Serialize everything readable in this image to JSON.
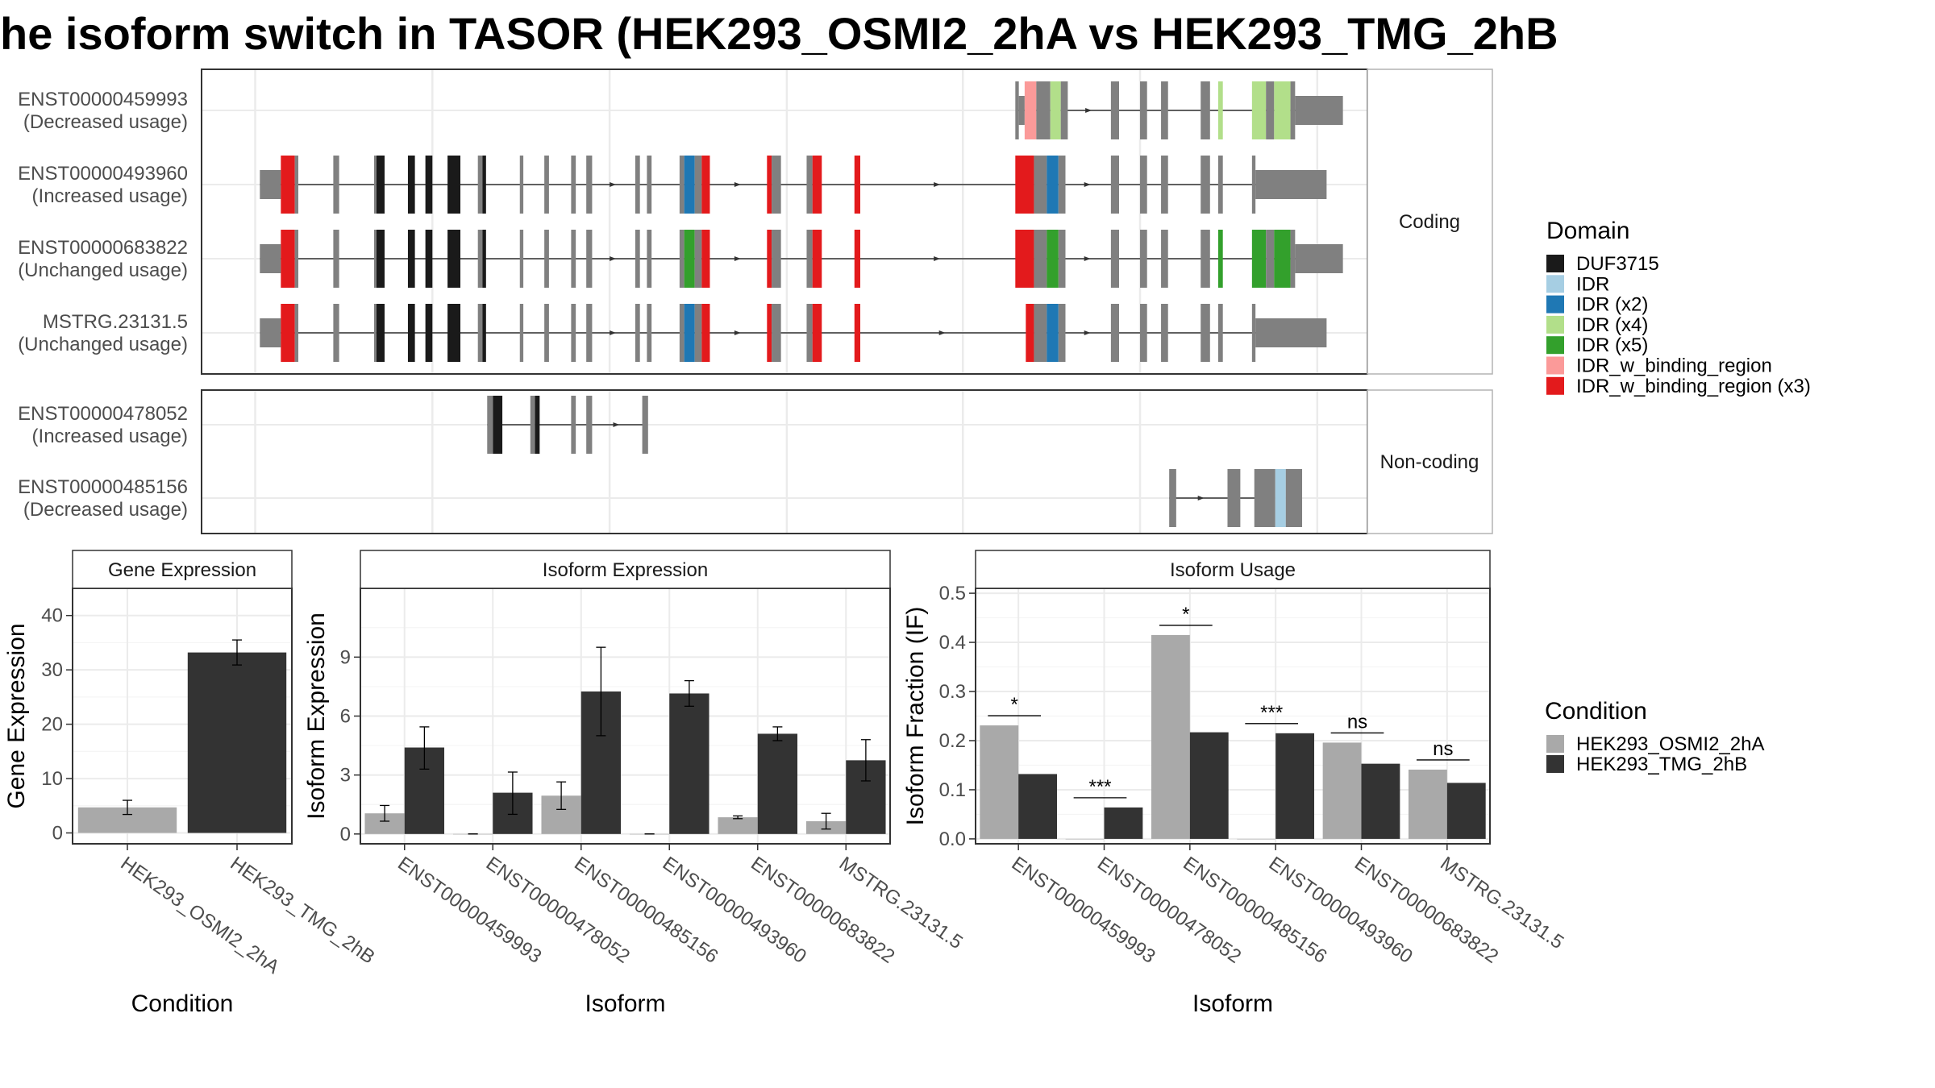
{
  "title": "he isoform switch in TASOR (HEK293_OSMI2_2hA vs HEK293_TMG_2hB",
  "colors": {
    "panel_border": "#333333",
    "grid": "#ebebeb",
    "intron": "#333333",
    "exon": "#808080",
    "cond_a": "#a9a9a9",
    "cond_b": "#333333"
  },
  "structure": {
    "strip_coding": "Coding",
    "strip_noncoding": "Non-coding",
    "coding": [
      {
        "id": "ENST00000459993",
        "usage": "(Decreased usage)",
        "intron": [
          0.7,
          0.965
        ],
        "exons": [
          [
            0.698,
            0.701,
            "c"
          ],
          [
            0.701,
            0.706,
            "u"
          ],
          [
            0.706,
            0.716,
            "IDR_w_binding_region"
          ],
          [
            0.716,
            0.728,
            "c"
          ],
          [
            0.728,
            0.737,
            "IDR (x4)"
          ],
          [
            0.737,
            0.743,
            "c"
          ],
          [
            0.78,
            0.787,
            "c"
          ],
          [
            0.805,
            0.811,
            "c"
          ],
          [
            0.823,
            0.829,
            "c"
          ],
          [
            0.857,
            0.865,
            "c"
          ],
          [
            0.872,
            0.876,
            "IDR (x4)"
          ],
          [
            0.901,
            0.913,
            "IDR (x4)"
          ],
          [
            0.913,
            0.92,
            "c"
          ],
          [
            0.92,
            0.934,
            "IDR (x4)"
          ],
          [
            0.934,
            0.938,
            "c"
          ],
          [
            0.938,
            0.979,
            "u"
          ]
        ]
      },
      {
        "id": "ENST00000493960",
        "usage": "(Increased usage)",
        "intron": [
          0.05,
          0.945
        ],
        "exons": [
          [
            0.05,
            0.068,
            "u"
          ],
          [
            0.068,
            0.08,
            "IDR_w_binding_region (x3)"
          ],
          [
            0.08,
            0.083,
            "c"
          ],
          [
            0.113,
            0.118,
            "c"
          ],
          [
            0.148,
            0.15,
            "c"
          ],
          [
            0.15,
            0.157,
            "DUF3715"
          ],
          [
            0.177,
            0.183,
            "DUF3715"
          ],
          [
            0.192,
            0.198,
            "DUF3715"
          ],
          [
            0.211,
            0.222,
            "DUF3715"
          ],
          [
            0.237,
            0.241,
            "c"
          ],
          [
            0.241,
            0.244,
            "DUF3715"
          ],
          [
            0.273,
            0.276,
            "c"
          ],
          [
            0.294,
            0.298,
            "c"
          ],
          [
            0.317,
            0.321,
            "c"
          ],
          [
            0.33,
            0.335,
            "c"
          ],
          [
            0.372,
            0.376,
            "c"
          ],
          [
            0.382,
            0.386,
            "c"
          ],
          [
            0.41,
            0.414,
            "c"
          ],
          [
            0.414,
            0.423,
            "IDR (x2)"
          ],
          [
            0.423,
            0.429,
            "c"
          ],
          [
            0.429,
            0.436,
            "IDR_w_binding_region (x3)"
          ],
          [
            0.485,
            0.489,
            "IDR_w_binding_region (x3)"
          ],
          [
            0.489,
            0.497,
            "c"
          ],
          [
            0.519,
            0.524,
            "c"
          ],
          [
            0.524,
            0.532,
            "IDR_w_binding_region (x3)"
          ],
          [
            0.56,
            0.565,
            "IDR_w_binding_region (x3)"
          ],
          [
            0.698,
            0.714,
            "IDR_w_binding_region (x3)"
          ],
          [
            0.714,
            0.725,
            "c"
          ],
          [
            0.725,
            0.735,
            "IDR (x2)"
          ],
          [
            0.735,
            0.741,
            "c"
          ],
          [
            0.78,
            0.787,
            "c"
          ],
          [
            0.805,
            0.811,
            "c"
          ],
          [
            0.823,
            0.829,
            "c"
          ],
          [
            0.857,
            0.865,
            "c"
          ],
          [
            0.872,
            0.876,
            "c"
          ],
          [
            0.901,
            0.904,
            "c"
          ],
          [
            0.904,
            0.965,
            "u"
          ]
        ]
      },
      {
        "id": "ENST00000683822",
        "usage": "(Unchanged usage)",
        "intron": [
          0.05,
          0.965
        ],
        "exons": [
          [
            0.05,
            0.068,
            "u"
          ],
          [
            0.068,
            0.08,
            "IDR_w_binding_region (x3)"
          ],
          [
            0.08,
            0.083,
            "c"
          ],
          [
            0.113,
            0.118,
            "c"
          ],
          [
            0.148,
            0.15,
            "c"
          ],
          [
            0.15,
            0.157,
            "DUF3715"
          ],
          [
            0.177,
            0.183,
            "DUF3715"
          ],
          [
            0.192,
            0.198,
            "DUF3715"
          ],
          [
            0.211,
            0.222,
            "DUF3715"
          ],
          [
            0.237,
            0.241,
            "c"
          ],
          [
            0.241,
            0.244,
            "DUF3715"
          ],
          [
            0.273,
            0.276,
            "c"
          ],
          [
            0.294,
            0.298,
            "c"
          ],
          [
            0.317,
            0.321,
            "c"
          ],
          [
            0.33,
            0.335,
            "c"
          ],
          [
            0.372,
            0.376,
            "c"
          ],
          [
            0.382,
            0.386,
            "c"
          ],
          [
            0.41,
            0.414,
            "c"
          ],
          [
            0.414,
            0.423,
            "IDR (x5)"
          ],
          [
            0.423,
            0.429,
            "c"
          ],
          [
            0.429,
            0.436,
            "IDR_w_binding_region (x3)"
          ],
          [
            0.485,
            0.489,
            "IDR_w_binding_region (x3)"
          ],
          [
            0.489,
            0.497,
            "c"
          ],
          [
            0.519,
            0.524,
            "c"
          ],
          [
            0.524,
            0.532,
            "IDR_w_binding_region (x3)"
          ],
          [
            0.56,
            0.565,
            "IDR_w_binding_region (x3)"
          ],
          [
            0.698,
            0.714,
            "IDR_w_binding_region (x3)"
          ],
          [
            0.714,
            0.725,
            "c"
          ],
          [
            0.725,
            0.735,
            "IDR (x5)"
          ],
          [
            0.735,
            0.741,
            "c"
          ],
          [
            0.78,
            0.787,
            "c"
          ],
          [
            0.805,
            0.811,
            "c"
          ],
          [
            0.823,
            0.829,
            "c"
          ],
          [
            0.857,
            0.865,
            "c"
          ],
          [
            0.872,
            0.876,
            "IDR (x5)"
          ],
          [
            0.901,
            0.913,
            "IDR (x5)"
          ],
          [
            0.913,
            0.92,
            "c"
          ],
          [
            0.92,
            0.934,
            "IDR (x5)"
          ],
          [
            0.934,
            0.938,
            "c"
          ],
          [
            0.938,
            0.979,
            "u"
          ]
        ]
      },
      {
        "id": "MSTRG.23131.5",
        "usage": "(Unchanged usage)",
        "intron": [
          0.05,
          0.945
        ],
        "exons": [
          [
            0.05,
            0.068,
            "u"
          ],
          [
            0.068,
            0.08,
            "IDR_w_binding_region (x3)"
          ],
          [
            0.08,
            0.083,
            "c"
          ],
          [
            0.113,
            0.118,
            "c"
          ],
          [
            0.148,
            0.15,
            "c"
          ],
          [
            0.15,
            0.157,
            "DUF3715"
          ],
          [
            0.177,
            0.183,
            "DUF3715"
          ],
          [
            0.192,
            0.198,
            "DUF3715"
          ],
          [
            0.211,
            0.222,
            "DUF3715"
          ],
          [
            0.237,
            0.241,
            "c"
          ],
          [
            0.241,
            0.244,
            "DUF3715"
          ],
          [
            0.273,
            0.276,
            "c"
          ],
          [
            0.294,
            0.298,
            "c"
          ],
          [
            0.317,
            0.321,
            "c"
          ],
          [
            0.33,
            0.335,
            "c"
          ],
          [
            0.372,
            0.376,
            "c"
          ],
          [
            0.382,
            0.386,
            "c"
          ],
          [
            0.41,
            0.414,
            "c"
          ],
          [
            0.414,
            0.423,
            "IDR (x2)"
          ],
          [
            0.423,
            0.429,
            "c"
          ],
          [
            0.429,
            0.436,
            "IDR_w_binding_region (x3)"
          ],
          [
            0.485,
            0.489,
            "IDR_w_binding_region (x3)"
          ],
          [
            0.489,
            0.497,
            "c"
          ],
          [
            0.519,
            0.524,
            "c"
          ],
          [
            0.524,
            0.532,
            "IDR_w_binding_region (x3)"
          ],
          [
            0.56,
            0.565,
            "IDR_w_binding_region (x3)"
          ],
          [
            0.707,
            0.714,
            "IDR_w_binding_region (x3)"
          ],
          [
            0.714,
            0.725,
            "c"
          ],
          [
            0.725,
            0.735,
            "IDR (x2)"
          ],
          [
            0.735,
            0.741,
            "c"
          ],
          [
            0.78,
            0.787,
            "c"
          ],
          [
            0.805,
            0.811,
            "c"
          ],
          [
            0.823,
            0.829,
            "c"
          ],
          [
            0.857,
            0.865,
            "c"
          ],
          [
            0.872,
            0.876,
            "c"
          ],
          [
            0.901,
            0.904,
            "c"
          ],
          [
            0.904,
            0.965,
            "u"
          ]
        ]
      }
    ],
    "noncoding": [
      {
        "id": "ENST00000478052",
        "usage": "(Increased usage)",
        "intron": [
          0.245,
          0.38
        ],
        "exons": [
          [
            0.245,
            0.25,
            "n"
          ],
          [
            0.25,
            0.258,
            "DUF3715"
          ],
          [
            0.282,
            0.286,
            "n"
          ],
          [
            0.286,
            0.29,
            "DUF3715"
          ],
          [
            0.317,
            0.321,
            "n"
          ],
          [
            0.33,
            0.335,
            "n"
          ],
          [
            0.378,
            0.383,
            "n"
          ]
        ]
      },
      {
        "id": "ENST00000485156",
        "usage": "(Decreased usage)",
        "intron": [
          0.83,
          0.92
        ],
        "exons": [
          [
            0.83,
            0.836,
            "n"
          ],
          [
            0.88,
            0.891,
            "n"
          ],
          [
            0.903,
            0.921,
            "n"
          ],
          [
            0.921,
            0.93,
            "IDR"
          ],
          [
            0.93,
            0.944,
            "n"
          ]
        ]
      }
    ],
    "legend_title": "Domain",
    "legend": [
      {
        "label": "DUF3715",
        "color": "#1a1a1a"
      },
      {
        "label": "IDR",
        "color": "#a6cee3"
      },
      {
        "label": "IDR (x2)",
        "color": "#1f78b4"
      },
      {
        "label": "IDR (x4)",
        "color": "#b2df8a"
      },
      {
        "label": "IDR (x5)",
        "color": "#33a02c"
      },
      {
        "label": "IDR_w_binding_region",
        "color": "#fb9a99"
      },
      {
        "label": "IDR_w_binding_region (x3)",
        "color": "#e31a1c"
      }
    ]
  },
  "chart_data": [
    {
      "type": "bar",
      "title": "Gene Expression",
      "xlabel": "Condition",
      "ylabel": "Gene Expression",
      "categories": [
        "HEK293_OSMI2_2hA",
        "HEK293_TMG_2hB"
      ],
      "values": [
        4.7,
        33.2
      ],
      "errors": [
        [
          3.4,
          6.0
        ],
        [
          30.9,
          35.5
        ]
      ],
      "ylim": [
        -2,
        45
      ],
      "yticks": [
        0,
        10,
        20,
        30,
        40
      ]
    },
    {
      "type": "bar",
      "title": "Isoform Expression",
      "xlabel": "Isoform",
      "ylabel": "Isoform Expression",
      "categories": [
        "ENST00000459993",
        "ENST00000478052",
        "ENST00000485156",
        "ENST00000493960",
        "ENST00000683822",
        "MSTRG.23131.5"
      ],
      "series": [
        {
          "name": "HEK293_OSMI2_2hA",
          "values": [
            1.05,
            0.0,
            1.95,
            0.0,
            0.85,
            0.65
          ],
          "errors": [
            [
              0.65,
              1.45
            ],
            [
              0.0,
              0.0
            ],
            [
              1.25,
              2.65
            ],
            [
              0.0,
              0.0
            ],
            [
              0.78,
              0.92
            ],
            [
              0.25,
              1.05
            ]
          ]
        },
        {
          "name": "HEK293_TMG_2hB",
          "values": [
            4.4,
            2.1,
            7.25,
            7.15,
            5.1,
            3.75
          ],
          "errors": [
            [
              3.3,
              5.45
            ],
            [
              1.0,
              3.15
            ],
            [
              5.0,
              9.5
            ],
            [
              6.5,
              7.8
            ],
            [
              4.75,
              5.45
            ],
            [
              2.7,
              4.8
            ]
          ]
        }
      ],
      "ylim": [
        -0.5,
        12.5
      ],
      "yticks": [
        0,
        3,
        6,
        9
      ]
    },
    {
      "type": "bar",
      "title": "Isoform Usage",
      "xlabel": "Isoform",
      "ylabel": "Isoform Fraction (IF)",
      "categories": [
        "ENST00000459993",
        "ENST00000478052",
        "ENST00000485156",
        "ENST00000493960",
        "ENST00000683822",
        "MSTRG.23131.5"
      ],
      "series": [
        {
          "name": "HEK293_OSMI2_2hA",
          "values": [
            0.231,
            0.0,
            0.415,
            0.0,
            0.196,
            0.141
          ]
        },
        {
          "name": "HEK293_TMG_2hB",
          "values": [
            0.132,
            0.064,
            0.217,
            0.215,
            0.153,
            0.114
          ]
        }
      ],
      "significance": [
        "*",
        "***",
        "*",
        "***",
        "ns",
        "ns"
      ],
      "ylim": [
        -0.01,
        0.51
      ],
      "yticks": [
        0.0,
        0.1,
        0.2,
        0.3,
        0.4,
        0.5
      ]
    }
  ],
  "condition_legend": {
    "title": "Condition",
    "items": [
      {
        "label": "HEK293_OSMI2_2hA",
        "color": "#a9a9a9"
      },
      {
        "label": "HEK293_TMG_2hB",
        "color": "#333333"
      }
    ]
  }
}
